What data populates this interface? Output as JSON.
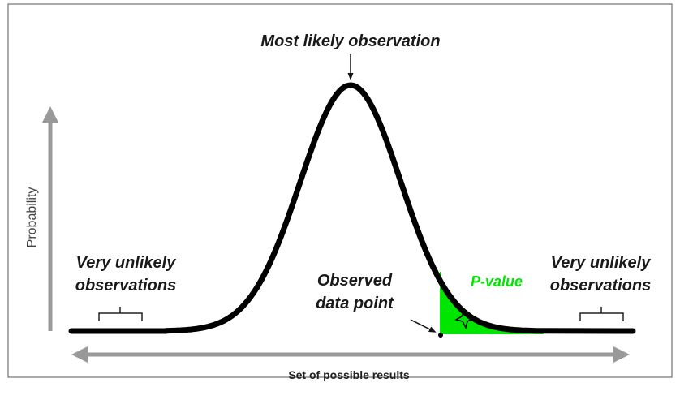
{
  "title": "Most likely observation",
  "y_axis_label": "Probability",
  "x_axis_label": "Set of possible results",
  "left_note": [
    "Very unlikely",
    "observations"
  ],
  "right_note": [
    "Very unlikely",
    "observations"
  ],
  "observed": [
    "Observed",
    "data point"
  ],
  "p_value": "P-value"
}
